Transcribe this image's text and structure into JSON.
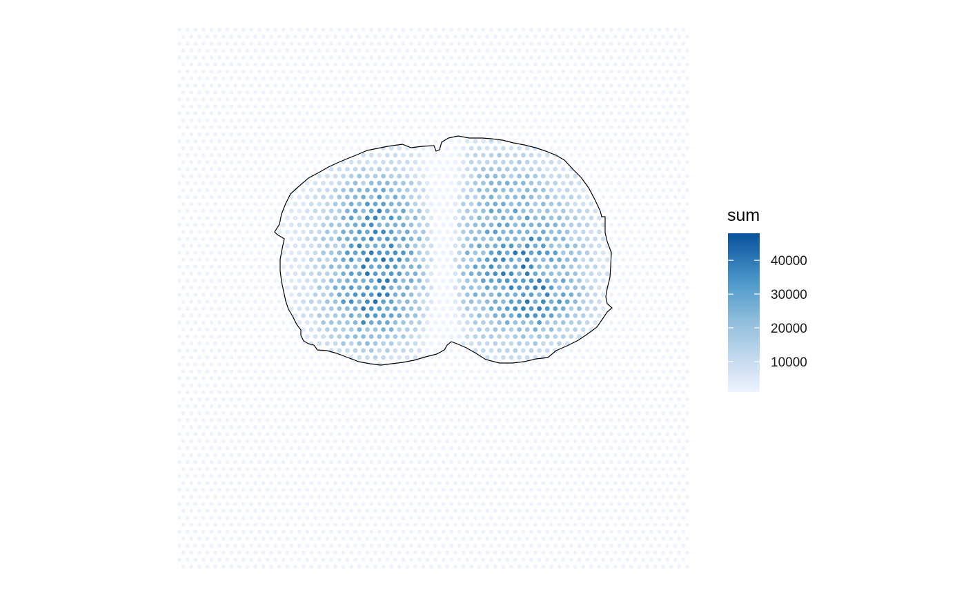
{
  "chart_data": {
    "type": "scatter",
    "subtype": "spatial-spot-map",
    "title": "",
    "xlabel": "",
    "ylabel": "",
    "grid": false,
    "axes_visible": false,
    "legend": {
      "title": "sum",
      "placement": "right",
      "type": "colorbar",
      "range": [
        1000,
        48000
      ],
      "ticks": [
        10000,
        20000,
        30000,
        40000
      ],
      "tick_labels": [
        "10000",
        "20000",
        "30000",
        "40000"
      ]
    },
    "colors": {
      "low": "#eef3ff",
      "high": "#08519c",
      "background_spot": "#eef2fd",
      "outline": "#000000"
    },
    "spot_grid": {
      "rows": 78,
      "cols": 64,
      "pattern": "hexagonal",
      "in_tissue_values": "sum ranges about 1000–48000; two high-count lobes (left and right hemispheres) near 30000–48000, a low midline seam and low outer rim"
    },
    "tissue_outline": "two-lobed section (left and right hemispheres) with notches at the top and bottom midline"
  }
}
